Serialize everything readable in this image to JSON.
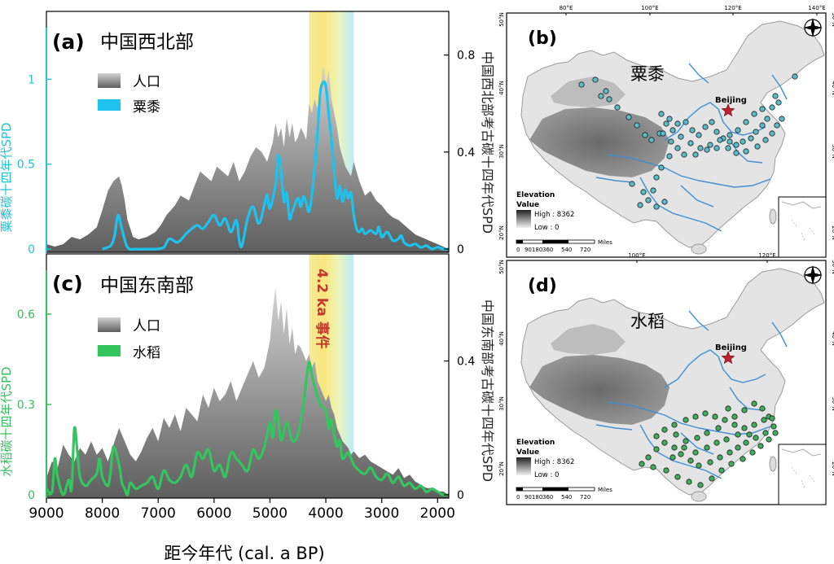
{
  "chart_data": [
    {
      "panel": "(a)",
      "type": "area",
      "title": "中国西北部",
      "xlabel": "距今年代 (cal. a BP)",
      "xlim": [
        9000,
        1800
      ],
      "x_ticks": [
        "9000",
        "8000",
        "7000",
        "6000",
        "5000",
        "4000",
        "3000",
        "2000"
      ],
      "ylabel_left": "粟黍碳十四年代SPD",
      "ylim_left": [
        0,
        1.4
      ],
      "y_ticks_left": [
        "0",
        "0.5",
        "1"
      ],
      "ylabel_right": "中国西北部考古碳十四年代SPD",
      "ylim_right": [
        0,
        0.98
      ],
      "y_ticks_right": [
        "0",
        "0.4",
        "0.8"
      ],
      "legend": [
        "人口",
        "粟黍"
      ],
      "series": [
        {
          "name": "人口",
          "axis": "right",
          "x": [
            9000,
            8850,
            8700,
            8550,
            8400,
            8250,
            8100,
            8000,
            7900,
            7800,
            7700,
            7650,
            7600,
            7550,
            7450,
            7350,
            7200,
            7050,
            6950,
            6850,
            6700,
            6600,
            6450,
            6350,
            6250,
            6150,
            6050,
            5950,
            5850,
            5750,
            5650,
            5550,
            5450,
            5350,
            5250,
            5150,
            5050,
            4950,
            4900,
            4850,
            4800,
            4750,
            4700,
            4650,
            4600,
            4550,
            4500,
            4450,
            4400,
            4350,
            4300,
            4250,
            4200,
            4150,
            4100,
            4050,
            4000,
            3950,
            3900,
            3850,
            3800,
            3750,
            3700,
            3650,
            3600,
            3550,
            3500,
            3450,
            3400,
            3350,
            3300,
            3200,
            3100,
            3000,
            2900,
            2800,
            2700,
            2600,
            2500,
            2400,
            2300,
            2200,
            2100,
            2000,
            1900,
            1800
          ],
          "values": [
            0.02,
            0.01,
            0.02,
            0.05,
            0.04,
            0.06,
            0.09,
            0.16,
            0.24,
            0.28,
            0.3,
            0.26,
            0.2,
            0.12,
            0.05,
            0.04,
            0.05,
            0.07,
            0.1,
            0.14,
            0.18,
            0.22,
            0.2,
            0.26,
            0.32,
            0.3,
            0.28,
            0.34,
            0.32,
            0.3,
            0.36,
            0.28,
            0.32,
            0.38,
            0.42,
            0.4,
            0.36,
            0.44,
            0.52,
            0.46,
            0.5,
            0.42,
            0.54,
            0.46,
            0.52,
            0.44,
            0.46,
            0.5,
            0.48,
            0.45,
            0.6,
            0.56,
            0.62,
            0.58,
            0.64,
            0.76,
            0.68,
            0.74,
            0.62,
            0.56,
            0.5,
            0.42,
            0.38,
            0.34,
            0.32,
            0.3,
            0.36,
            0.32,
            0.28,
            0.25,
            0.22,
            0.24,
            0.2,
            0.18,
            0.15,
            0.13,
            0.12,
            0.1,
            0.08,
            0.06,
            0.05,
            0.04,
            0.03,
            0.02,
            0.01,
            0.0
          ]
        },
        {
          "name": "粟黍",
          "axis": "left",
          "x": [
            8000,
            7850,
            7780,
            7720,
            7650,
            7550,
            7400,
            7200,
            7050,
            6900,
            6800,
            6650,
            6500,
            6400,
            6300,
            6200,
            6100,
            6000,
            5900,
            5800,
            5700,
            5600,
            5550,
            5500,
            5400,
            5300,
            5200,
            5100,
            5050,
            5000,
            4900,
            4850,
            4800,
            4750,
            4700,
            4650,
            4600,
            4500,
            4450,
            4400,
            4350,
            4300,
            4250,
            4200,
            4150,
            4100,
            4050,
            4000,
            3950,
            3900,
            3850,
            3800,
            3750,
            3700,
            3650,
            3600,
            3550,
            3500,
            3450,
            3400,
            3350,
            3300,
            3200,
            3100,
            3050,
            3000,
            2900,
            2800,
            2700,
            2650,
            2600,
            2500,
            2400,
            2300,
            2200,
            2100,
            2000,
            1900,
            1800
          ],
          "values": [
            0.0,
            0.02,
            0.08,
            0.2,
            0.12,
            0.01,
            0.0,
            0.0,
            0.0,
            0.01,
            0.06,
            0.04,
            0.09,
            0.12,
            0.14,
            0.12,
            0.16,
            0.2,
            0.14,
            0.18,
            0.1,
            0.17,
            0.05,
            0.02,
            0.18,
            0.25,
            0.15,
            0.26,
            0.32,
            0.24,
            0.38,
            0.55,
            0.45,
            0.28,
            0.33,
            0.18,
            0.22,
            0.3,
            0.25,
            0.31,
            0.27,
            0.22,
            0.32,
            0.48,
            0.68,
            0.92,
            0.98,
            0.96,
            0.8,
            0.65,
            0.45,
            0.3,
            0.37,
            0.28,
            0.35,
            0.3,
            0.33,
            0.2,
            0.12,
            0.1,
            0.12,
            0.09,
            0.11,
            0.09,
            0.13,
            0.07,
            0.1,
            0.05,
            0.06,
            0.08,
            0.04,
            0.02,
            0.03,
            0.01,
            0.02,
            0.0,
            0.01,
            0.0,
            0.0
          ]
        }
      ]
    },
    {
      "panel": "(c)",
      "type": "area",
      "title": "中国东南部",
      "xlabel": "距今年代 (cal. a BP)",
      "xlim": [
        9000,
        1800
      ],
      "x_ticks": [
        "9000",
        "8000",
        "7000",
        "6000",
        "5000",
        "4000",
        "3000",
        "2000"
      ],
      "ylabel_left": "水稻碳十四年代SPD",
      "ylim_left": [
        0,
        0.8
      ],
      "y_ticks_left": [
        "0",
        "0.3",
        "0.6"
      ],
      "ylabel_right": "中国东南部考古碳十四年代SPD",
      "ylim_right": [
        0,
        0.72
      ],
      "y_ticks_right": [
        "0",
        "0.4"
      ],
      "legend": [
        "人口",
        "水稻"
      ],
      "event_label": "4.2 ka 事件",
      "event_range": [
        4300,
        3500
      ],
      "series": [
        {
          "name": "人口",
          "axis": "right",
          "x": [
            9000,
            8900,
            8800,
            8700,
            8600,
            8500,
            8400,
            8300,
            8200,
            8100,
            8000,
            7900,
            7800,
            7700,
            7600,
            7500,
            7400,
            7300,
            7200,
            7100,
            7000,
            6900,
            6800,
            6700,
            6600,
            6500,
            6400,
            6300,
            6200,
            6100,
            6000,
            5900,
            5800,
            5700,
            5600,
            5500,
            5400,
            5300,
            5200,
            5100,
            5000,
            4950,
            4900,
            4850,
            4800,
            4750,
            4700,
            4650,
            4600,
            4550,
            4500,
            4450,
            4400,
            4350,
            4300,
            4250,
            4200,
            4150,
            4100,
            4050,
            4000,
            3950,
            3900,
            3850,
            3800,
            3750,
            3700,
            3650,
            3600,
            3550,
            3500,
            3400,
            3300,
            3200,
            3100,
            3000,
            2900,
            2800,
            2700,
            2600,
            2500,
            2400,
            2300,
            2200,
            2100,
            2000,
            1900,
            1800
          ],
          "values": [
            0.05,
            0.1,
            0.08,
            0.15,
            0.12,
            0.1,
            0.14,
            0.12,
            0.16,
            0.12,
            0.14,
            0.1,
            0.15,
            0.2,
            0.16,
            0.12,
            0.1,
            0.13,
            0.17,
            0.2,
            0.16,
            0.23,
            0.2,
            0.24,
            0.19,
            0.26,
            0.24,
            0.22,
            0.3,
            0.26,
            0.32,
            0.28,
            0.3,
            0.34,
            0.28,
            0.32,
            0.36,
            0.4,
            0.35,
            0.38,
            0.46,
            0.55,
            0.62,
            0.52,
            0.58,
            0.48,
            0.56,
            0.45,
            0.5,
            0.42,
            0.45,
            0.44,
            0.42,
            0.4,
            0.42,
            0.38,
            0.4,
            0.34,
            0.32,
            0.3,
            0.28,
            0.3,
            0.26,
            0.24,
            0.2,
            0.18,
            0.16,
            0.15,
            0.14,
            0.12,
            0.13,
            0.11,
            0.12,
            0.1,
            0.09,
            0.08,
            0.07,
            0.06,
            0.08,
            0.05,
            0.06,
            0.04,
            0.03,
            0.02,
            0.02,
            0.01,
            0.01,
            0.0
          ]
        },
        {
          "name": "水稻",
          "axis": "left",
          "x": [
            9000,
            8900,
            8850,
            8800,
            8700,
            8600,
            8550,
            8500,
            8450,
            8400,
            8300,
            8200,
            8100,
            8050,
            8000,
            7900,
            7850,
            7800,
            7700,
            7650,
            7600,
            7550,
            7500,
            7400,
            7300,
            7200,
            7100,
            7000,
            6900,
            6800,
            6700,
            6600,
            6500,
            6400,
            6300,
            6200,
            6100,
            6000,
            5900,
            5800,
            5700,
            5600,
            5500,
            5400,
            5300,
            5200,
            5100,
            5000,
            4950,
            4900,
            4850,
            4800,
            4700,
            4600,
            4500,
            4400,
            4350,
            4300,
            4250,
            4200,
            4100,
            4000,
            3950,
            3900,
            3850,
            3800,
            3750,
            3700,
            3600,
            3500,
            3400,
            3300,
            3200,
            3100,
            3000,
            2900,
            2800,
            2700,
            2600,
            2500,
            2400,
            2300,
            2200,
            2100,
            2000,
            1900,
            1800
          ],
          "values": [
            0.02,
            0.01,
            0.12,
            0.06,
            0.0,
            0.05,
            0.02,
            0.22,
            0.15,
            0.06,
            0.03,
            0.05,
            0.07,
            0.12,
            0.06,
            0.03,
            0.08,
            0.16,
            0.1,
            0.04,
            0.02,
            0.0,
            0.04,
            0.02,
            0.03,
            0.04,
            0.06,
            0.02,
            0.08,
            0.05,
            0.04,
            0.06,
            0.1,
            0.06,
            0.14,
            0.12,
            0.15,
            0.08,
            0.1,
            0.06,
            0.14,
            0.12,
            0.1,
            0.08,
            0.15,
            0.12,
            0.16,
            0.24,
            0.19,
            0.28,
            0.25,
            0.18,
            0.24,
            0.18,
            0.2,
            0.3,
            0.38,
            0.44,
            0.4,
            0.36,
            0.3,
            0.28,
            0.22,
            0.25,
            0.2,
            0.16,
            0.18,
            0.12,
            0.14,
            0.1,
            0.08,
            0.07,
            0.09,
            0.06,
            0.05,
            0.07,
            0.04,
            0.06,
            0.03,
            0.04,
            0.02,
            0.03,
            0.01,
            0.02,
            0.01,
            0.0,
            0.0
          ]
        }
      ]
    },
    {
      "panel": "(b)",
      "type": "map",
      "title": "粟黍",
      "lon_ticks": [
        "80°E",
        "100°E",
        "120°E",
        "140°E"
      ],
      "lat_ticks": [
        "20°N",
        "30°N",
        "40°N",
        "50°N"
      ],
      "capital": "Beijing",
      "legend_title": "Elevation",
      "legend_value": "Value",
      "legend_high": "High : 8362",
      "legend_low": "Low : 0",
      "scale_labels": [
        "0",
        "90180",
        "360",
        "540",
        "720"
      ],
      "scale_unit": "Miles",
      "site_color": "#5bbcc9"
    },
    {
      "panel": "(d)",
      "type": "map",
      "title": "水稻",
      "lon_ticks": [
        "100°E",
        "120°E"
      ],
      "lat_ticks": [
        "20°N",
        "30°N",
        "40°N",
        "50°N"
      ],
      "capital": "Beijing",
      "legend_title": "Elevation",
      "legend_value": "Value",
      "legend_high": "High : 8362",
      "legend_low": "Low : 0",
      "scale_labels": [
        "0",
        "90180",
        "360",
        "540",
        "720"
      ],
      "scale_unit": "Miles",
      "site_color": "#3fae5a"
    }
  ],
  "colors": {
    "population": "#8a8a8a",
    "millet": "#1ec2ee",
    "rice": "#33c55e",
    "millet_axis": "#22c3d8",
    "rice_axis": "#35bf5f",
    "event_text": "#c0392b",
    "beijing_star": "#c0202a"
  }
}
